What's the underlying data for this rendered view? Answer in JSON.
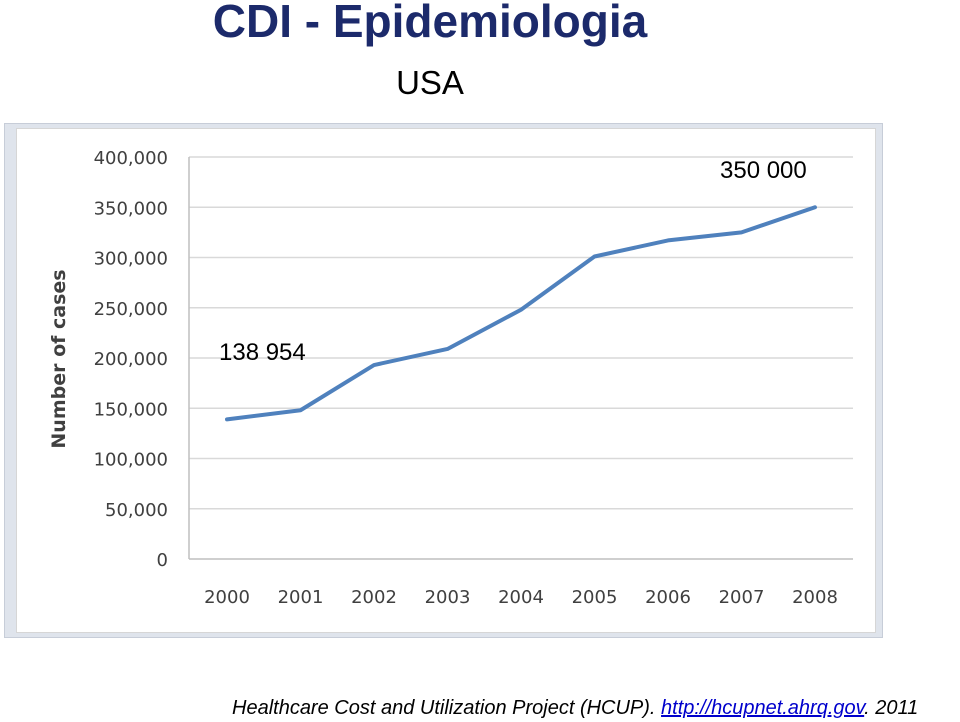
{
  "slide": {
    "title": "CDI - Epidemiologia",
    "subtitle": "USA"
  },
  "annotations": {
    "start_value": "138 954",
    "end_value": "350 000"
  },
  "footer": {
    "text_before": "Healthcare Cost and Utilization Project (HCUP). ",
    "link": "http://hcupnet.ahrq.gov",
    "text_after": ". 2011"
  },
  "chart_data": {
    "type": "line",
    "title": "",
    "xlabel": "",
    "ylabel": "Number of cases",
    "categories": [
      "2000",
      "2001",
      "2002",
      "2003",
      "2004",
      "2005",
      "2006",
      "2007",
      "2008"
    ],
    "series": [
      {
        "values": [
          138954,
          148000,
          193000,
          209000,
          248000,
          301000,
          317000,
          325000,
          350000
        ]
      }
    ],
    "ylim": [
      0,
      400000
    ],
    "yticks": [
      0,
      50000,
      100000,
      150000,
      200000,
      250000,
      300000,
      350000,
      400000
    ],
    "ytick_labels": [
      "0",
      "50,000",
      "100,000",
      "150,000",
      "200,000",
      "250,000",
      "300,000",
      "350,000",
      "400,000"
    ],
    "grid": true,
    "legend": "none",
    "colors": {
      "line": "#4f81bd",
      "grid": "#d9d9d9",
      "axis_text": "#404040"
    }
  }
}
